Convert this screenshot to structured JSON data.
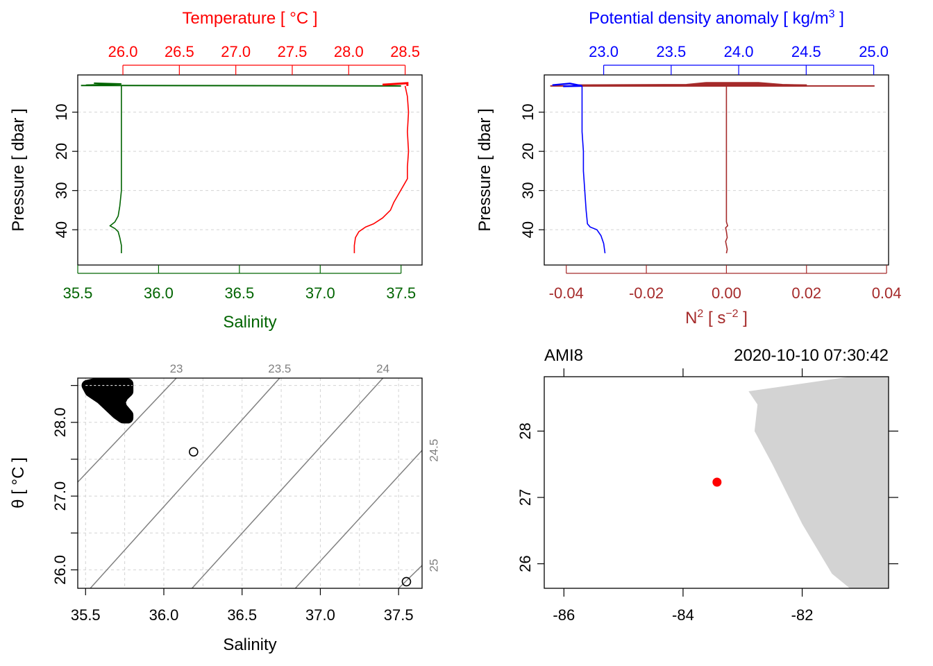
{
  "colors": {
    "temperature": "#ff0000",
    "salinity": "#006400",
    "density": "#0000ff",
    "n2": "#a52a2a",
    "grid": "#d3d3d3",
    "isopycnal": "#808080",
    "land": "#d3d3d3",
    "station": "#ff0000",
    "ink": "#000000"
  },
  "chart_data": [
    {
      "id": "ts_profile",
      "type": "line",
      "top_axis": {
        "label": "Temperature [ °C ]",
        "range": [
          25.6,
          28.65
        ],
        "ticks": [
          26.0,
          26.5,
          27.0,
          27.5,
          28.0,
          28.5
        ],
        "tick_labels": [
          "26.0",
          "26.5",
          "27.0",
          "27.5",
          "28.0",
          "28.5"
        ]
      },
      "bottom_axis": {
        "label": "Salinity",
        "range": [
          35.5,
          37.63
        ],
        "ticks": [
          35.5,
          36.0,
          36.5,
          37.0,
          37.5
        ],
        "tick_labels": [
          "35.5",
          "36.0",
          "36.5",
          "37.0",
          "37.5"
        ]
      },
      "y_axis": {
        "label": "Pressure [ dbar ]",
        "range": [
          49.0,
          0.5
        ],
        "ticks": [
          10,
          20,
          30,
          40
        ],
        "tick_labels": [
          "10",
          "20",
          "30",
          "40"
        ]
      },
      "series": [
        {
          "name": "Temperature",
          "axis": "top",
          "points": [
            [
              28.5,
              3.3
            ],
            [
              28.52,
              6
            ],
            [
              28.53,
              10
            ],
            [
              28.52,
              15
            ],
            [
              28.53,
              20
            ],
            [
              28.52,
              24
            ],
            [
              28.52,
              27
            ],
            [
              28.49,
              28.5
            ],
            [
              28.46,
              30
            ],
            [
              28.43,
              31.5
            ],
            [
              28.4,
              33
            ],
            [
              28.37,
              35
            ],
            [
              28.3,
              37
            ],
            [
              28.22,
              38.5
            ],
            [
              28.15,
              39.3
            ],
            [
              28.09,
              40.5
            ],
            [
              28.06,
              42
            ],
            [
              28.05,
              44
            ],
            [
              28.05,
              46
            ]
          ]
        },
        {
          "name": "Salinity",
          "axis": "bottom",
          "points": [
            [
              35.77,
              3.3
            ],
            [
              35.77,
              6
            ],
            [
              35.77,
              10
            ],
            [
              35.77,
              15
            ],
            [
              35.77,
              20
            ],
            [
              35.77,
              25
            ],
            [
              35.77,
              30
            ],
            [
              35.76,
              34
            ],
            [
              35.75,
              36.5
            ],
            [
              35.73,
              38
            ],
            [
              35.7,
              39
            ],
            [
              35.73,
              39.7
            ],
            [
              35.75,
              40.5
            ],
            [
              35.76,
              42
            ],
            [
              35.77,
              44
            ],
            [
              35.77,
              46
            ]
          ]
        }
      ]
    },
    {
      "id": "density_n2_profile",
      "type": "line",
      "top_axis": {
        "label": "Potential density anomaly [ kg/m",
        "label_superscript": "3",
        "label_suffix": " ]",
        "range": [
          22.56,
          25.11
        ],
        "ticks": [
          23.0,
          23.5,
          24.0,
          24.5,
          25.0
        ],
        "tick_labels": [
          "23.0",
          "23.5",
          "24.0",
          "24.5",
          "25.0"
        ]
      },
      "bottom_axis": {
        "label": "N",
        "label_superscript": "2",
        "label_suffix": " [ s",
        "label_exponent": "−2",
        "label_end": " ]",
        "range": [
          -0.0455,
          0.0405
        ],
        "ticks": [
          -0.04,
          -0.02,
          0.0,
          0.02,
          0.04
        ],
        "tick_labels": [
          "-0.04",
          "-0.02",
          "0.00",
          "0.02",
          "0.04"
        ]
      },
      "y_axis": {
        "label": "Pressure [ dbar ]",
        "range": [
          49.0,
          0.5
        ],
        "ticks": [
          10,
          20,
          30,
          40
        ],
        "tick_labels": [
          "10",
          "20",
          "30",
          "40"
        ]
      },
      "series": [
        {
          "name": "Potential density anomaly",
          "axis": "top",
          "points": [
            [
              22.84,
              3.3
            ],
            [
              22.84,
              8
            ],
            [
              22.84,
              15
            ],
            [
              22.85,
              20
            ],
            [
              22.85,
              25
            ],
            [
              22.86,
              30
            ],
            [
              22.87,
              35
            ],
            [
              22.88,
              38.5
            ],
            [
              22.9,
              39.3
            ],
            [
              22.95,
              40
            ],
            [
              22.98,
              41.5
            ],
            [
              23.0,
              43.5
            ],
            [
              23.01,
              46
            ]
          ]
        },
        {
          "name": "N2",
          "axis": "bottom",
          "points": [
            [
              0.0,
              3.3
            ],
            [
              0.0,
              10
            ],
            [
              0.0,
              20
            ],
            [
              0.0,
              30
            ],
            [
              0.0,
              38
            ],
            [
              0.0003,
              39
            ],
            [
              -0.0002,
              39.5
            ],
            [
              0.0,
              40.5
            ],
            [
              0.0002,
              42
            ],
            [
              -0.0002,
              43
            ],
            [
              0.0,
              44
            ],
            [
              0.0002,
              45
            ],
            [
              0.0,
              46
            ]
          ]
        }
      ]
    },
    {
      "id": "ts_diagram",
      "type": "scatter",
      "x_axis": {
        "label": "Salinity",
        "range": [
          35.45,
          37.65
        ],
        "ticks": [
          35.5,
          36.0,
          36.5,
          37.0,
          37.5
        ],
        "tick_labels": [
          "35.5",
          "36.0",
          "36.5",
          "37.0",
          "37.5"
        ]
      },
      "y_axis": {
        "label": "θ [ °C ]",
        "range": [
          25.75,
          28.6
        ],
        "ticks": [
          26.0,
          27.0,
          28.0
        ],
        "tick_labels": [
          "26.0",
          "27.0",
          "28.0"
        ]
      },
      "isopycnals": [
        {
          "sigma": 23.0,
          "label": "23",
          "from": [
            35.45,
            27.19
          ],
          "to": [
            36.08,
            28.6
          ]
        },
        {
          "sigma": 23.5,
          "label": "23.5",
          "from": [
            35.53,
            25.75
          ],
          "to": [
            36.74,
            28.6
          ]
        },
        {
          "sigma": 24.0,
          "label": "24",
          "from": [
            36.18,
            25.75
          ],
          "to": [
            37.4,
            28.6
          ]
        },
        {
          "sigma": 24.5,
          "label": "24.5",
          "from": [
            36.84,
            25.75
          ],
          "to": [
            37.65,
            27.62
          ]
        },
        {
          "sigma": 25.0,
          "label": "25",
          "from": [
            37.5,
            25.75
          ],
          "to": [
            37.65,
            26.06
          ]
        }
      ],
      "blob": [
        [
          35.51,
          28.5
        ],
        [
          35.55,
          28.52
        ],
        [
          35.62,
          28.53
        ],
        [
          35.7,
          28.53
        ],
        [
          35.77,
          28.52
        ],
        [
          35.77,
          28.42
        ],
        [
          35.74,
          28.36
        ],
        [
          35.72,
          28.28
        ],
        [
          35.73,
          28.2
        ],
        [
          35.77,
          28.1
        ],
        [
          35.77,
          28.06
        ],
        [
          35.74,
          28.06
        ],
        [
          35.7,
          28.12
        ],
        [
          35.66,
          28.2
        ],
        [
          35.6,
          28.32
        ],
        [
          35.53,
          28.42
        ]
      ],
      "outliers": [
        [
          36.19,
          27.6
        ],
        [
          37.55,
          25.84
        ]
      ]
    },
    {
      "id": "station_map",
      "type": "map",
      "station_name": "AMI8",
      "datetime": "2020-10-10 07:30:42",
      "x_axis": {
        "range": [
          -86.33,
          -80.55
        ],
        "ticks": [
          -86,
          -84,
          -82
        ],
        "tick_labels": [
          "-86",
          "-84",
          "-82"
        ],
        "top_ticks": [
          -86,
          -84,
          -82
        ]
      },
      "y_axis": {
        "range": [
          25.63,
          28.82
        ],
        "ticks": [
          26,
          27,
          28
        ],
        "tick_labels": [
          "26",
          "27",
          "28"
        ]
      },
      "station": {
        "lon": -83.43,
        "lat": 27.23
      },
      "land": [
        [
          -81.2,
          28.82
        ],
        [
          -80.55,
          28.82
        ],
        [
          -80.55,
          25.63
        ],
        [
          -81.2,
          25.63
        ],
        [
          -81.5,
          25.85
        ],
        [
          -82.0,
          26.6
        ],
        [
          -82.5,
          27.5
        ],
        [
          -82.8,
          28.0
        ],
        [
          -82.75,
          28.4
        ],
        [
          -82.9,
          28.6
        ]
      ]
    }
  ]
}
